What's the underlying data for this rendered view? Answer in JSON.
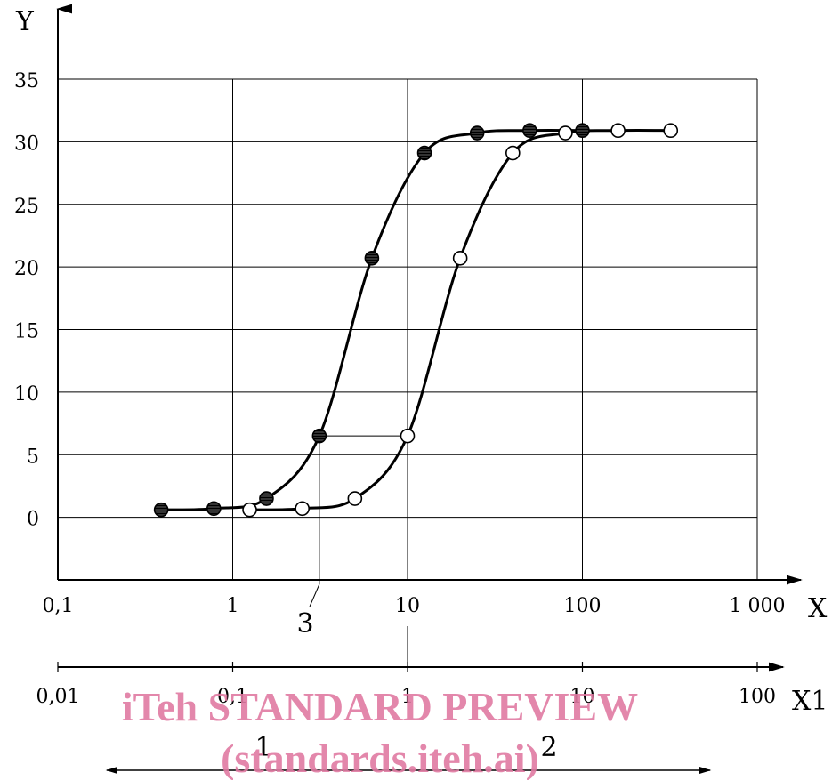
{
  "chart_data": {
    "type": "scatter",
    "x_axis": {
      "label": "X",
      "scale": "log",
      "range": [
        0.1,
        1000
      ],
      "ticks": [
        0.1,
        1,
        10,
        100,
        1000
      ],
      "tick_labels": [
        "0,1",
        "1",
        "10",
        "100",
        "1 000"
      ]
    },
    "x1_axis": {
      "label": "X1",
      "scale": "log",
      "range": [
        0.01,
        100
      ],
      "ticks": [
        0.01,
        0.1,
        1,
        10,
        100
      ],
      "tick_labels": [
        "0,01",
        "0,1",
        "1",
        "10",
        "100"
      ]
    },
    "y_axis": {
      "label": "Y",
      "range": [
        -5,
        35
      ],
      "ticks": [
        0,
        5,
        10,
        15,
        20,
        25,
        30,
        35
      ],
      "tick_labels": [
        "0",
        "5",
        "10",
        "15",
        "20",
        "25",
        "30",
        "35"
      ]
    },
    "grid": true,
    "series": [
      {
        "marker": "filled",
        "x": [
          0.39,
          0.78,
          1.56,
          3.13,
          6.25,
          12.5,
          25,
          50,
          100
        ],
        "y": [
          0.6,
          0.7,
          1.5,
          6.5,
          20.7,
          29.1,
          30.7,
          30.9,
          30.9
        ]
      },
      {
        "marker": "open",
        "x": [
          1.25,
          2.5,
          5.0,
          10,
          20,
          40,
          80,
          160,
          320
        ],
        "y": [
          0.6,
          0.7,
          1.5,
          6.5,
          20.7,
          29.1,
          30.7,
          30.9,
          30.9
        ]
      }
    ],
    "annotations": [
      {
        "text": "3",
        "x": 3.13
      },
      {
        "text": "1"
      },
      {
        "text": "2"
      }
    ]
  },
  "watermark": {
    "line1": "iTeh STANDARD PREVIEW",
    "line2": "(standards.iteh.ai)",
    "color": "#e07aa2"
  },
  "colors": {
    "line": "#000000",
    "grid": "#000000",
    "open_marker_fill": "#ffffff"
  }
}
